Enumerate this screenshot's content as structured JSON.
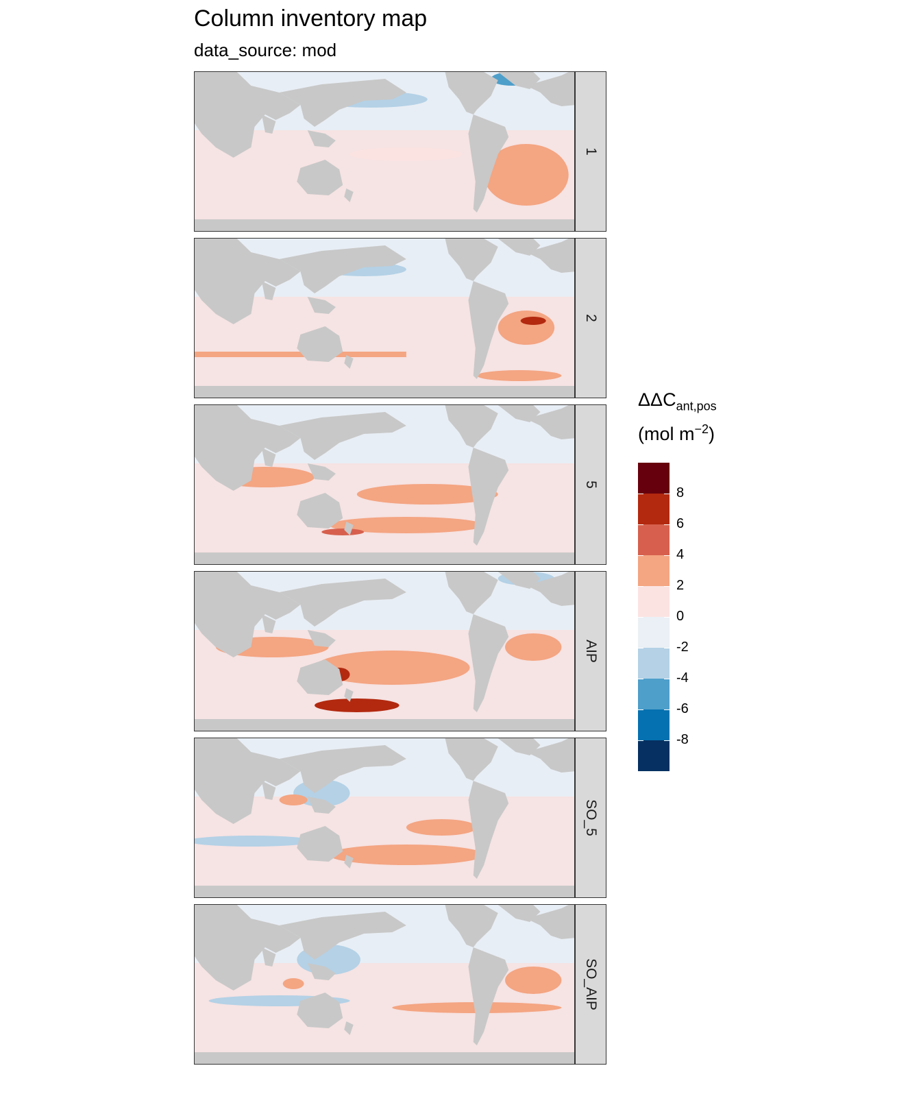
{
  "title": "Column inventory map",
  "subtitle": "data_source: mod",
  "legend": {
    "title_main": "ΔΔC",
    "title_sub": "ant,pos",
    "units_pre": "(mol m",
    "units_sup": "−2",
    "units_post": ")",
    "bins": [
      "#67000d",
      "#b2290f",
      "#d6604d",
      "#f4a582",
      "#fbe3e2",
      "#eaf0f5",
      "#b4d1e6",
      "#4e9fca",
      "#0571b0",
      "#053061"
    ],
    "ticks": [
      "8",
      "6",
      "4",
      "2",
      "0",
      "-2",
      "-4",
      "-6",
      "-8"
    ]
  },
  "colors": {
    "land": "#c8c8c8",
    "neutral_pos": "#f6e3e3",
    "neutral_neg": "#e8eef5"
  },
  "panels": [
    {
      "label": "1"
    },
    {
      "label": "2"
    },
    {
      "label": "5"
    },
    {
      "label": "AIP"
    },
    {
      "label": "SO_5"
    },
    {
      "label": "SO_AIP"
    }
  ]
}
